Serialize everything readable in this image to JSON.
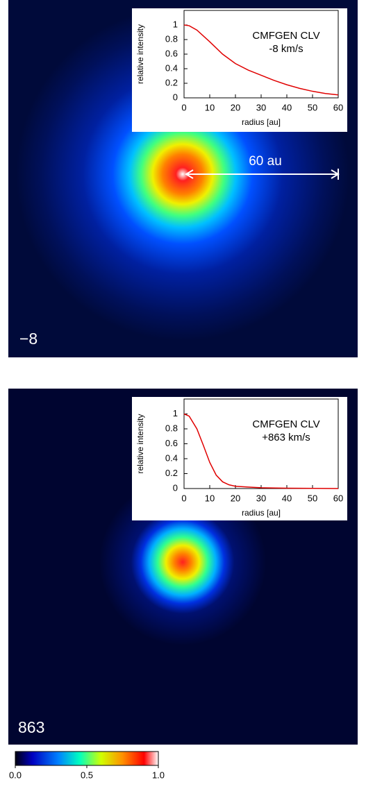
{
  "chart_data": [
    {
      "type": "line",
      "title": "CMFGEN CLV",
      "subtitle": "-8 km/s",
      "xlabel": "radius [au]",
      "ylabel": "relative intensity",
      "color": "#e00000",
      "x": [
        0,
        2,
        5,
        10,
        15,
        20,
        25,
        30,
        35,
        40,
        45,
        50,
        55,
        60
      ],
      "values": [
        1.0,
        0.99,
        0.93,
        0.77,
        0.6,
        0.47,
        0.38,
        0.31,
        0.24,
        0.18,
        0.13,
        0.09,
        0.06,
        0.04
      ],
      "xlim": [
        0,
        60
      ],
      "ylim": [
        0,
        1.2
      ],
      "xticks": [
        0,
        10,
        20,
        30,
        40,
        50,
        60
      ],
      "yticks": [
        0,
        0.2,
        0.4,
        0.6,
        0.8,
        1
      ]
    },
    {
      "type": "line",
      "title": "CMFGEN CLV",
      "subtitle": "+863 km/s",
      "xlabel": "radius [au]",
      "ylabel": "relative intensity",
      "color": "#e00000",
      "x": [
        0,
        2,
        5,
        7.5,
        10,
        12.5,
        15,
        17.5,
        20,
        25,
        30,
        40,
        50,
        60
      ],
      "values": [
        1.0,
        0.97,
        0.8,
        0.58,
        0.35,
        0.18,
        0.09,
        0.05,
        0.03,
        0.02,
        0.01,
        0.005,
        0.002,
        0
      ],
      "xlim": [
        0,
        60
      ],
      "ylim": [
        0,
        1.2
      ],
      "xticks": [
        0,
        10,
        20,
        30,
        40,
        50,
        60
      ],
      "yticks": [
        0,
        0.2,
        0.4,
        0.6,
        0.8,
        1
      ]
    },
    {
      "type": "colorbar",
      "xlim": [
        0,
        1
      ],
      "xticks": [
        {
          "value": 0,
          "label": "0.0"
        },
        0.5,
        {
          "value": 1,
          "label": "1.0"
        }
      ]
    }
  ],
  "panels": [
    {
      "label": "−8",
      "scale_label": "60 au"
    },
    {
      "label": "863"
    }
  ]
}
